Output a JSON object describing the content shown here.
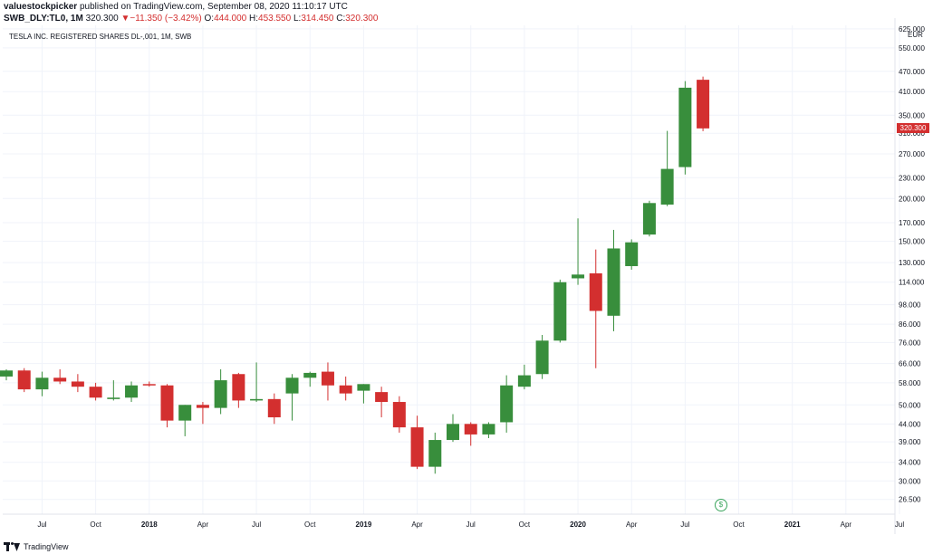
{
  "header": {
    "author": "valuestockpicker",
    "published_text": " published on TradingView.com, September 08, 2020 11:10:17 UTC"
  },
  "ohlc": {
    "symbol": "SWB_DLY:TL0, 1M",
    "last": "320.300",
    "arrow": "▼",
    "change": "−11.350 (−3.42%)",
    "o_label": "O:",
    "o_value": "444.000",
    "h_label": "H:",
    "h_value": "453.550",
    "l_label": "L:",
    "l_value": "314.450",
    "c_label": "C:",
    "c_value": "320.300"
  },
  "currency": "EUR",
  "branding": {
    "logo_text": "TradingView"
  },
  "colors": {
    "up": "#388e3c",
    "down": "#d32f2f",
    "grid": "#f0f3fa",
    "text": "#131722",
    "accent": "#3ba55d"
  },
  "icons": {
    "event_marker": "dollar-circle-icon"
  },
  "chart_data": {
    "type": "candlestick",
    "title": "TESLA INC. REGISTERED SHARES DL-,001, 1M, SWB",
    "y_scale": "log",
    "ylim": [
      24.0,
      640.0
    ],
    "y_ticks": [
      "625.000",
      "550.000",
      "470.000",
      "410.000",
      "350.000",
      "310.000",
      "270.000",
      "230.000",
      "200.000",
      "170.000",
      "150.000",
      "130.000",
      "114.000",
      "98.000",
      "86.000",
      "76.000",
      "66.000",
      "58.000",
      "50.000",
      "44.000",
      "39.000",
      "34.000",
      "30.000",
      "26.500"
    ],
    "last_price_label": "320.300",
    "x_labels": [
      {
        "label": "Jul",
        "month": "2017-07"
      },
      {
        "label": "Oct",
        "month": "2017-10"
      },
      {
        "label": "2018",
        "month": "2018-01"
      },
      {
        "label": "Apr",
        "month": "2018-04"
      },
      {
        "label": "Jul",
        "month": "2018-07"
      },
      {
        "label": "Oct",
        "month": "2018-10"
      },
      {
        "label": "2019",
        "month": "2019-01"
      },
      {
        "label": "Apr",
        "month": "2019-04"
      },
      {
        "label": "Jul",
        "month": "2019-07"
      },
      {
        "label": "Oct",
        "month": "2019-10"
      },
      {
        "label": "2020",
        "month": "2020-01"
      },
      {
        "label": "Apr",
        "month": "2020-04"
      },
      {
        "label": "Jul",
        "month": "2020-07"
      },
      {
        "label": "Oct",
        "month": "2020-10"
      },
      {
        "label": "2021",
        "month": "2021-01"
      },
      {
        "label": "Apr",
        "month": "2021-04"
      },
      {
        "label": "Jul",
        "month": "2021-07"
      }
    ],
    "candles": [
      {
        "month": "2017-05",
        "open": 60.5,
        "high": 63.5,
        "low": 59.0,
        "close": 63.0
      },
      {
        "month": "2017-06",
        "open": 63.0,
        "high": 64.0,
        "low": 54.5,
        "close": 55.5
      },
      {
        "month": "2017-07",
        "open": 55.5,
        "high": 62.5,
        "low": 53.0,
        "close": 60.0
      },
      {
        "month": "2017-08",
        "open": 60.0,
        "high": 63.5,
        "low": 57.5,
        "close": 58.5
      },
      {
        "month": "2017-09",
        "open": 58.5,
        "high": 61.5,
        "low": 54.5,
        "close": 56.5
      },
      {
        "month": "2017-10",
        "open": 56.5,
        "high": 58.0,
        "low": 51.5,
        "close": 52.5
      },
      {
        "month": "2017-11",
        "open": 52.0,
        "high": 59.0,
        "low": 51.5,
        "close": 52.5
      },
      {
        "month": "2017-12",
        "open": 52.5,
        "high": 58.5,
        "low": 51.0,
        "close": 57.0
      },
      {
        "month": "2018-01",
        "open": 57.5,
        "high": 58.5,
        "low": 56.5,
        "close": 57.0
      },
      {
        "month": "2018-02",
        "open": 57.0,
        "high": 57.5,
        "low": 43.0,
        "close": 45.0
      },
      {
        "month": "2018-03",
        "open": 45.0,
        "high": 50.0,
        "low": 40.5,
        "close": 50.0
      },
      {
        "month": "2018-04",
        "open": 50.0,
        "high": 51.0,
        "low": 44.0,
        "close": 49.0
      },
      {
        "month": "2018-05",
        "open": 49.0,
        "high": 63.5,
        "low": 47.0,
        "close": 59.0
      },
      {
        "month": "2018-06",
        "open": 61.5,
        "high": 62.0,
        "low": 49.0,
        "close": 51.5
      },
      {
        "month": "2018-07",
        "open": 51.5,
        "high": 66.5,
        "low": 51.0,
        "close": 52.0
      },
      {
        "month": "2018-08",
        "open": 52.0,
        "high": 54.0,
        "low": 44.0,
        "close": 46.0
      },
      {
        "month": "2018-09",
        "open": 54.0,
        "high": 61.5,
        "low": 45.0,
        "close": 60.0
      },
      {
        "month": "2018-10",
        "open": 60.0,
        "high": 62.5,
        "low": 56.5,
        "close": 62.0
      },
      {
        "month": "2018-11",
        "open": 62.5,
        "high": 66.5,
        "low": 51.5,
        "close": 57.0
      },
      {
        "month": "2018-12",
        "open": 57.0,
        "high": 60.5,
        "low": 51.5,
        "close": 54.0
      },
      {
        "month": "2019-01",
        "open": 55.0,
        "high": 57.5,
        "low": 50.5,
        "close": 57.5
      },
      {
        "month": "2019-02",
        "open": 54.5,
        "high": 56.5,
        "low": 46.0,
        "close": 51.0
      },
      {
        "month": "2019-03",
        "open": 51.0,
        "high": 53.0,
        "low": 41.5,
        "close": 43.0
      },
      {
        "month": "2019-04",
        "open": 43.0,
        "high": 46.5,
        "low": 32.5,
        "close": 33.0
      },
      {
        "month": "2019-05",
        "open": 33.0,
        "high": 41.5,
        "low": 31.5,
        "close": 39.5
      },
      {
        "month": "2019-06",
        "open": 39.5,
        "high": 47.0,
        "low": 39.0,
        "close": 44.0
      },
      {
        "month": "2019-07",
        "open": 44.0,
        "high": 44.5,
        "low": 38.0,
        "close": 41.0
      },
      {
        "month": "2019-08",
        "open": 41.0,
        "high": 44.5,
        "low": 40.0,
        "close": 44.0
      },
      {
        "month": "2019-09",
        "open": 44.5,
        "high": 61.0,
        "low": 41.5,
        "close": 57.0
      },
      {
        "month": "2019-10",
        "open": 56.5,
        "high": 65.5,
        "low": 55.5,
        "close": 61.0
      },
      {
        "month": "2019-11",
        "open": 61.5,
        "high": 80.0,
        "low": 59.5,
        "close": 77.0
      },
      {
        "month": "2019-12",
        "open": 77.0,
        "high": 116.0,
        "low": 76.0,
        "close": 114.0
      },
      {
        "month": "2020-01",
        "open": 117.0,
        "high": 175.0,
        "low": 112.0,
        "close": 120.0
      },
      {
        "month": "2020-02",
        "open": 121.0,
        "high": 142.0,
        "low": 64.0,
        "close": 94.0
      },
      {
        "month": "2020-03",
        "open": 91.0,
        "high": 162.0,
        "low": 82.0,
        "close": 143.0
      },
      {
        "month": "2020-04",
        "open": 127.0,
        "high": 152.0,
        "low": 124.0,
        "close": 149.0
      },
      {
        "month": "2020-05",
        "open": 157.0,
        "high": 197.0,
        "low": 155.0,
        "close": 194.0
      },
      {
        "month": "2020-06",
        "open": 192.0,
        "high": 315.0,
        "low": 190.0,
        "close": 244.0
      },
      {
        "month": "2020-07",
        "open": 247.0,
        "high": 440.0,
        "low": 235.0,
        "close": 421.0
      },
      {
        "month": "2020-08",
        "open": 444.0,
        "high": 453.55,
        "low": 314.45,
        "close": 320.3
      }
    ],
    "event_markers": [
      {
        "month": "2020-09",
        "type": "dividend",
        "label": "$"
      }
    ]
  }
}
